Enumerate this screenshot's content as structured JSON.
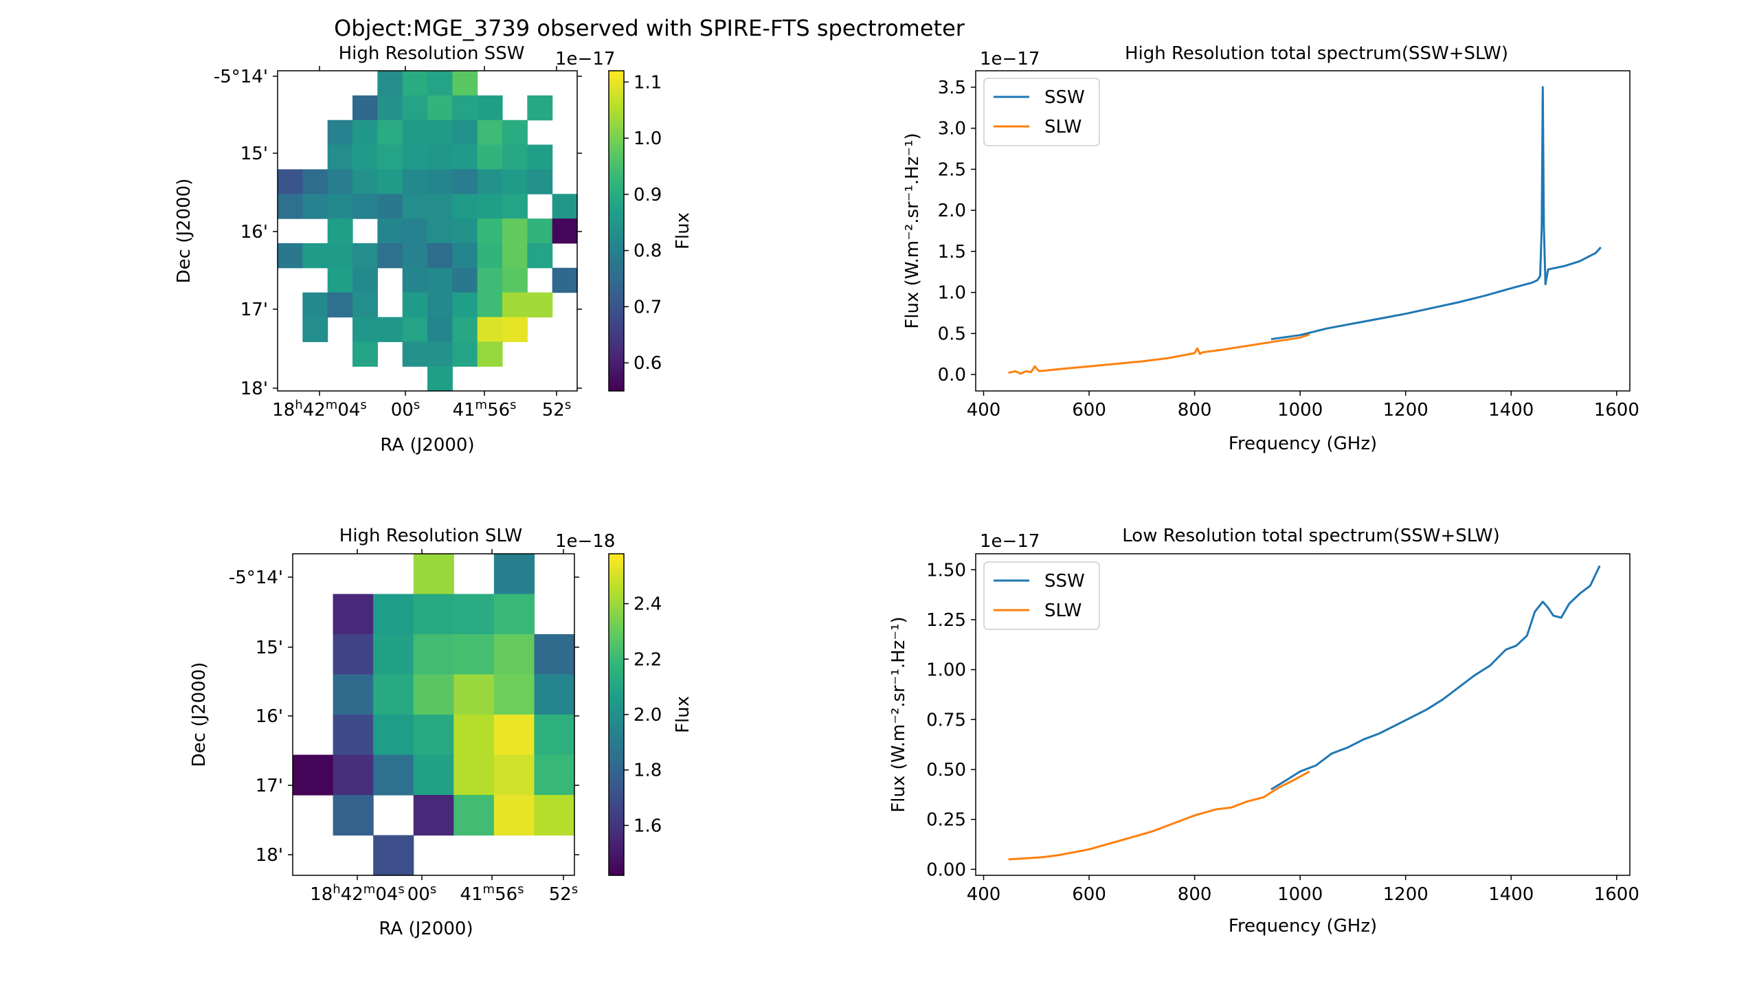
{
  "figure": {
    "suptitle": "Object:MGE_3739 observed with SPIRE-FTS spectrometer"
  },
  "colors": {
    "ssw": "#1f77b4",
    "slw": "#ff7f0e",
    "colormap": [
      "#440154",
      "#482878",
      "#3e4a89",
      "#31688e",
      "#26828e",
      "#1f9e89",
      "#35b779",
      "#6ece58",
      "#b5de2b",
      "#fde725"
    ]
  },
  "maps": [
    {
      "title": "High Resolution SSW",
      "xlabel": "RA (J2000)",
      "ylabel": "Dec (J2000)",
      "ra_ticks": [
        "18h42m04s",
        "00s",
        "41m56s",
        "52s"
      ],
      "dec_ticks": [
        "-5°14'",
        "15'",
        "16'",
        "17'",
        "18'"
      ],
      "colorbar": {
        "label": "Flux",
        "offset": "1e−17",
        "min": 0.55,
        "max": 1.12,
        "ticks": [
          "0.6",
          "0.7",
          "0.8",
          "0.9",
          "1.0",
          "1.1"
        ],
        "tick_values": [
          0.6,
          0.7,
          0.8,
          0.9,
          1.0,
          1.1
        ]
      },
      "grid": [
        [
          null,
          null,
          null,
          null,
          0.83,
          0.9,
          0.88,
          0.97,
          null,
          null,
          null,
          null
        ],
        [
          null,
          null,
          null,
          0.74,
          0.84,
          0.88,
          0.92,
          0.88,
          0.87,
          null,
          0.89,
          null
        ],
        [
          null,
          null,
          0.8,
          0.85,
          0.9,
          0.86,
          0.86,
          0.84,
          0.94,
          0.9,
          null,
          null
        ],
        [
          null,
          null,
          0.83,
          0.86,
          0.88,
          0.86,
          0.85,
          0.86,
          0.92,
          0.89,
          0.87,
          null
        ],
        [
          0.7,
          0.75,
          0.79,
          0.84,
          0.86,
          0.82,
          0.81,
          0.79,
          0.84,
          0.86,
          0.84,
          null
        ],
        [
          0.76,
          0.8,
          0.82,
          0.8,
          0.78,
          0.83,
          0.83,
          0.86,
          0.87,
          0.88,
          null,
          0.85
        ],
        [
          null,
          null,
          0.87,
          null,
          0.81,
          0.8,
          0.83,
          0.84,
          0.93,
          0.98,
          0.92,
          0.56
        ],
        [
          0.78,
          0.86,
          0.86,
          0.83,
          0.76,
          0.8,
          0.75,
          0.81,
          0.92,
          0.98,
          0.88,
          null
        ],
        [
          null,
          null,
          0.87,
          0.82,
          null,
          0.81,
          0.82,
          0.78,
          0.94,
          0.97,
          null,
          0.74
        ],
        [
          null,
          0.82,
          0.76,
          0.83,
          null,
          0.86,
          0.82,
          0.87,
          0.94,
          1.04,
          1.04,
          null
        ],
        [
          null,
          0.83,
          null,
          0.85,
          0.85,
          0.88,
          0.81,
          0.89,
          1.09,
          1.1,
          null,
          null
        ],
        [
          null,
          null,
          null,
          0.88,
          null,
          0.84,
          0.84,
          0.88,
          1.03,
          null,
          null,
          null
        ],
        [
          null,
          null,
          null,
          null,
          null,
          null,
          0.87,
          null,
          null,
          null,
          null,
          null
        ]
      ]
    },
    {
      "title": "High Resolution SLW",
      "xlabel": "RA (J2000)",
      "ylabel": "Dec (J2000)",
      "ra_ticks": [
        "18h42m04s",
        "00s",
        "41m56s",
        "52s"
      ],
      "dec_ticks": [
        "-5°14'",
        "15'",
        "16'",
        "17'",
        "18'"
      ],
      "colorbar": {
        "label": "Flux",
        "offset": "1e−18",
        "min": 1.42,
        "max": 2.58,
        "ticks": [
          "1.6",
          "1.8",
          "2.0",
          "2.2",
          "2.4"
        ],
        "tick_values": [
          1.6,
          1.8,
          2.0,
          2.2,
          2.4
        ]
      },
      "grid": [
        [
          null,
          null,
          null,
          2.4,
          null,
          1.92,
          null
        ],
        [
          null,
          1.55,
          2.06,
          2.12,
          2.13,
          2.2,
          null
        ],
        [
          null,
          1.65,
          2.08,
          2.22,
          2.23,
          2.3,
          1.82
        ],
        [
          null,
          1.82,
          2.12,
          2.28,
          2.4,
          2.32,
          1.95
        ],
        [
          null,
          1.68,
          2.06,
          2.12,
          2.45,
          2.55,
          2.15
        ],
        [
          1.43,
          1.58,
          1.85,
          2.08,
          2.45,
          2.5,
          2.2
        ],
        [
          null,
          1.78,
          null,
          1.55,
          2.22,
          2.54,
          2.45
        ],
        [
          null,
          null,
          1.7,
          null,
          null,
          null,
          null
        ]
      ]
    }
  ],
  "chart_data": [
    {
      "type": "line",
      "title": "High Resolution total spectrum(SSW+SLW)",
      "xlabel": "Frequency (GHz)",
      "ylabel": "Flux (W.m⁻².sr⁻¹.Hz⁻¹)",
      "y_offset": "1e−17",
      "xlim": [
        385,
        1625
      ],
      "ylim": [
        -0.2,
        3.7
      ],
      "xticks": [
        400,
        600,
        800,
        1000,
        1200,
        1400,
        1600
      ],
      "yticks": [
        0.0,
        0.5,
        1.0,
        1.5,
        2.0,
        2.5,
        3.0,
        3.5
      ],
      "legend": "upper-left",
      "series": [
        {
          "name": "SSW",
          "x": [
            945,
            1000,
            1050,
            1100,
            1150,
            1200,
            1250,
            1300,
            1350,
            1400,
            1440,
            1450,
            1455,
            1458,
            1460,
            1462,
            1465,
            1470,
            1500,
            1530,
            1560,
            1570
          ],
          "y": [
            0.43,
            0.48,
            0.56,
            0.62,
            0.68,
            0.74,
            0.81,
            0.88,
            0.96,
            1.05,
            1.12,
            1.15,
            1.2,
            1.8,
            3.5,
            1.8,
            1.1,
            1.28,
            1.32,
            1.38,
            1.48,
            1.55
          ]
        },
        {
          "name": "SLW",
          "x": [
            447,
            460,
            470,
            480,
            490,
            497,
            505,
            550,
            600,
            650,
            700,
            750,
            800,
            805,
            810,
            815,
            850,
            900,
            950,
            1000,
            1018
          ],
          "y": [
            0.02,
            0.04,
            0.01,
            0.04,
            0.03,
            0.1,
            0.04,
            0.07,
            0.1,
            0.13,
            0.16,
            0.2,
            0.26,
            0.32,
            0.25,
            0.27,
            0.3,
            0.35,
            0.4,
            0.45,
            0.49
          ]
        }
      ]
    },
    {
      "type": "line",
      "title": "Low Resolution total spectrum(SSW+SLW)",
      "xlabel": "Frequency (GHz)",
      "ylabel": "Flux (W.m⁻².sr⁻¹.Hz⁻¹)",
      "y_offset": "1e−17",
      "xlim": [
        385,
        1625
      ],
      "ylim": [
        -0.03,
        1.58
      ],
      "xticks": [
        400,
        600,
        800,
        1000,
        1200,
        1400,
        1600
      ],
      "yticks": [
        0.0,
        0.25,
        0.5,
        0.75,
        1.0,
        1.25,
        1.5
      ],
      "ytick_labels": [
        "0.00",
        "0.25",
        "0.50",
        "0.75",
        "1.00",
        "1.25",
        "1.50"
      ],
      "legend": "upper-left",
      "series": [
        {
          "name": "SSW",
          "x": [
            945,
            970,
            1000,
            1030,
            1060,
            1090,
            1120,
            1150,
            1180,
            1210,
            1240,
            1270,
            1300,
            1330,
            1360,
            1390,
            1410,
            1430,
            1445,
            1460,
            1470,
            1480,
            1495,
            1510,
            1530,
            1550,
            1568
          ],
          "y": [
            0.4,
            0.44,
            0.49,
            0.52,
            0.58,
            0.61,
            0.65,
            0.68,
            0.72,
            0.76,
            0.8,
            0.85,
            0.91,
            0.97,
            1.02,
            1.1,
            1.12,
            1.17,
            1.29,
            1.34,
            1.31,
            1.27,
            1.26,
            1.33,
            1.38,
            1.42,
            1.52
          ]
        },
        {
          "name": "SLW",
          "x": [
            447,
            480,
            510,
            540,
            570,
            600,
            640,
            680,
            720,
            760,
            800,
            840,
            870,
            900,
            930,
            960,
            990,
            1018
          ],
          "y": [
            0.05,
            0.055,
            0.06,
            0.07,
            0.085,
            0.1,
            0.13,
            0.16,
            0.19,
            0.23,
            0.27,
            0.3,
            0.31,
            0.34,
            0.36,
            0.41,
            0.45,
            0.49
          ]
        }
      ]
    }
  ]
}
